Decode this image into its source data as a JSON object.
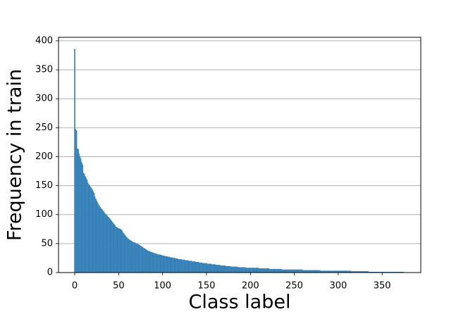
{
  "chart_data": {
    "type": "bar",
    "xlabel": "Class label",
    "ylabel": "Frequency in train",
    "color": "#3d8bc4",
    "edgecolor": "#2b6d9f",
    "grid": true,
    "xlim": [
      -18.5,
      394
    ],
    "ylim": [
      0,
      406
    ],
    "xticks": [
      0,
      50,
      100,
      150,
      200,
      250,
      300,
      350
    ],
    "yticks": [
      0,
      50,
      100,
      150,
      200,
      250,
      300,
      350,
      400
    ],
    "x": [
      0,
      1,
      2,
      3,
      4,
      5,
      6,
      7,
      8,
      9,
      10,
      11,
      12,
      13,
      14,
      15,
      16,
      17,
      18,
      19,
      20,
      21,
      22,
      23,
      24,
      25,
      26,
      27,
      28,
      29,
      30,
      31,
      32,
      33,
      34,
      35,
      36,
      37,
      38,
      39,
      40,
      41,
      42,
      43,
      44,
      45,
      46,
      47,
      48,
      49,
      50,
      51,
      52,
      53,
      54,
      55,
      56,
      57,
      58,
      59,
      60,
      61,
      62,
      63,
      64,
      65,
      66,
      67,
      68,
      69,
      70,
      71,
      72,
      73,
      74,
      75,
      76,
      77,
      78,
      79,
      80,
      81,
      82,
      83,
      84,
      85,
      86,
      87,
      88,
      89,
      90,
      91,
      92,
      93,
      94,
      95,
      96,
      97,
      98,
      99,
      100,
      101,
      102,
      103,
      104,
      105,
      106,
      107,
      108,
      109,
      110,
      111,
      112,
      113,
      114,
      115,
      116,
      117,
      118,
      119,
      120,
      121,
      122,
      123,
      124,
      125,
      126,
      127,
      128,
      129,
      130,
      131,
      132,
      133,
      134,
      135,
      136,
      137,
      138,
      139,
      140,
      141,
      142,
      143,
      144,
      145,
      146,
      147,
      148,
      149,
      150,
      151,
      152,
      153,
      154,
      155,
      156,
      157,
      158,
      159,
      160,
      161,
      162,
      163,
      164,
      165,
      166,
      167,
      168,
      169,
      170,
      171,
      172,
      173,
      174,
      175,
      176,
      177,
      178,
      179,
      180,
      181,
      182,
      183,
      184,
      185,
      186,
      187,
      188,
      189,
      190,
      191,
      192,
      193,
      194,
      195,
      196,
      197,
      198,
      199,
      200,
      201,
      202,
      203,
      204,
      205,
      206,
      207,
      208,
      209,
      210,
      211,
      212,
      213,
      214,
      215,
      216,
      217,
      218,
      219,
      220,
      221,
      222,
      223,
      224,
      225,
      226,
      227,
      228,
      229,
      230,
      231,
      232,
      233,
      234,
      235,
      236,
      237,
      238,
      239,
      240,
      241,
      242,
      243,
      244,
      245,
      246,
      247,
      248,
      249,
      250,
      251,
      252,
      253,
      254,
      255,
      256,
      257,
      258,
      259,
      260,
      261,
      262,
      263,
      264,
      265,
      266,
      267,
      268,
      269,
      270,
      271,
      272,
      273,
      274,
      275,
      276,
      277,
      278,
      279,
      280,
      281,
      282,
      283,
      284,
      285,
      286,
      287,
      288,
      289,
      290,
      291,
      292,
      293,
      294,
      295,
      296,
      297,
      298,
      299,
      300,
      301,
      302,
      303,
      304,
      305,
      306,
      307,
      308,
      309,
      310,
      311,
      312,
      313,
      314,
      315,
      316,
      317,
      318,
      319,
      320,
      321,
      322,
      323,
      324,
      325,
      326,
      327,
      328,
      329,
      330,
      331,
      332,
      333,
      334,
      335,
      336,
      337,
      338,
      339,
      340,
      341,
      342,
      343,
      344,
      345,
      346,
      347,
      348,
      349,
      350,
      351,
      352,
      353,
      354,
      355,
      356,
      357,
      358,
      359,
      360,
      361,
      362,
      363,
      364,
      365,
      366,
      367,
      368,
      369,
      370,
      371,
      372,
      373,
      374
    ],
    "values": [
      386,
      247,
      245,
      214,
      213,
      205,
      200,
      196,
      190,
      186,
      172,
      170,
      166,
      163,
      160,
      155,
      152,
      150,
      148,
      146,
      143,
      140,
      137,
      131,
      127,
      124,
      121,
      118,
      115,
      113,
      111,
      109,
      107,
      105,
      103,
      101,
      100,
      98,
      96,
      95,
      93,
      91,
      89,
      87,
      85,
      83,
      81,
      79,
      78,
      77,
      76,
      76,
      75,
      74,
      72,
      69,
      67,
      65,
      63,
      61,
      60,
      58,
      57,
      56,
      55,
      54,
      53,
      52,
      52,
      51,
      50,
      50,
      49,
      48,
      47,
      46,
      45,
      44,
      43,
      42,
      41,
      40,
      39,
      38,
      37,
      37,
      36,
      35,
      35,
      34,
      34,
      33,
      33,
      32,
      32,
      31,
      31,
      31,
      30,
      30,
      29,
      29,
      29,
      28,
      28,
      28,
      27,
      27,
      27,
      26,
      26,
      26,
      25,
      25,
      25,
      24,
      24,
      24,
      23,
      23,
      23,
      23,
      22,
      22,
      22,
      22,
      21,
      21,
      21,
      21,
      20,
      20,
      20,
      20,
      19,
      19,
      19,
      19,
      18,
      18,
      18,
      18,
      17,
      17,
      17,
      17,
      16,
      16,
      16,
      16,
      16,
      15,
      15,
      15,
      15,
      15,
      14,
      14,
      14,
      14,
      14,
      13,
      13,
      13,
      13,
      13,
      12,
      12,
      12,
      12,
      12,
      12,
      11,
      11,
      11,
      11,
      11,
      11,
      10,
      10,
      10,
      10,
      10,
      10,
      10,
      10,
      9,
      9,
      9,
      9,
      9,
      9,
      9,
      9,
      9,
      8,
      8,
      8,
      8,
      8,
      8,
      8,
      8,
      8,
      8,
      8,
      8,
      8,
      8,
      8,
      7,
      7,
      7,
      7,
      7,
      7,
      7,
      7,
      7,
      7,
      7,
      7,
      6,
      6,
      6,
      6,
      6,
      6,
      6,
      6,
      6,
      6,
      6,
      6,
      6,
      6,
      5,
      5,
      5,
      5,
      5,
      5,
      5,
      5,
      5,
      5,
      5,
      5,
      5,
      5,
      5,
      5,
      5,
      5,
      5,
      5,
      5,
      5,
      5,
      5,
      4,
      4,
      4,
      4,
      4,
      4,
      4,
      4,
      4,
      4,
      4,
      4,
      4,
      4,
      4,
      4,
      4,
      4,
      4,
      4,
      3,
      3,
      3,
      3,
      3,
      3,
      3,
      3,
      3,
      3,
      3,
      3,
      3,
      3,
      3,
      3,
      3,
      3,
      3,
      3,
      3,
      3,
      3,
      3,
      3,
      3,
      3,
      3,
      3,
      3,
      3,
      3,
      3,
      3,
      3,
      2,
      2,
      2,
      2,
      2,
      2,
      2,
      2,
      2,
      2,
      2,
      2,
      2,
      2,
      2,
      2,
      2,
      2,
      2,
      2,
      1,
      1,
      1,
      1,
      1,
      1,
      1,
      1,
      1,
      1,
      1,
      1,
      1,
      1,
      1,
      1,
      1,
      1,
      1,
      1,
      1,
      1,
      1,
      1,
      1,
      1,
      1,
      1,
      1,
      1,
      1,
      1,
      1,
      1,
      1,
      1,
      1,
      1,
      1,
      1
    ]
  }
}
